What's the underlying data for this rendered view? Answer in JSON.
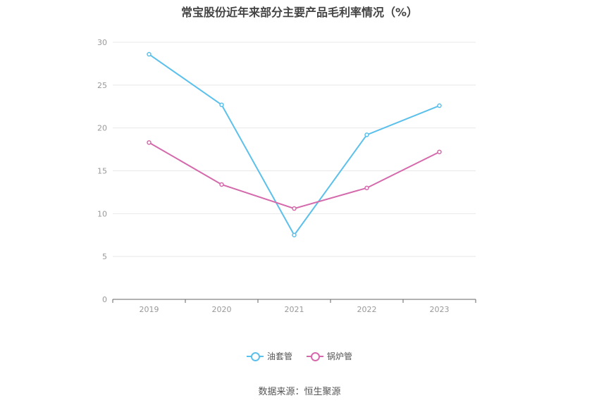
{
  "chart_data": {
    "type": "line",
    "title": "常宝股份近年来部分主要产品毛利率情况（%）",
    "categories": [
      "2019",
      "2020",
      "2021",
      "2022",
      "2023"
    ],
    "series": [
      {
        "name": "油套管",
        "color": "#5bc0eb",
        "values": [
          28.6,
          22.7,
          7.5,
          19.2,
          22.6
        ]
      },
      {
        "name": "锅炉管",
        "color": "#d46aac",
        "values": [
          18.3,
          13.4,
          10.6,
          13.0,
          17.2
        ]
      }
    ],
    "ylim": [
      0,
      30
    ],
    "yticks": [
      "0",
      "5",
      "10",
      "15",
      "20",
      "25",
      "30"
    ],
    "grid": true,
    "legend_position": "bottom-center"
  },
  "source": "数据来源：恒生聚源"
}
